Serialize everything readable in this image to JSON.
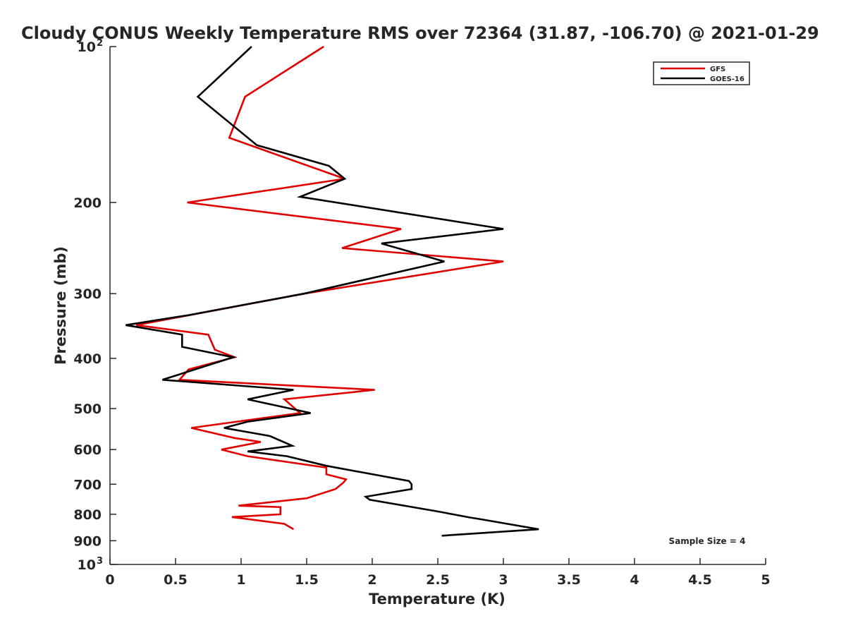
{
  "chart_data": {
    "type": "line",
    "title": "Cloudy CONUS Weekly Temperature RMS over 72364 (31.87, -106.70) @ 2021-01-29",
    "xlabel": "Temperature (K)",
    "ylabel": "Pressure (mb)",
    "xlim": [
      0,
      5
    ],
    "ylim": [
      100,
      1000
    ],
    "y_scale": "log",
    "y_reversed": true,
    "x_ticks": [
      "0",
      "0.5",
      "1",
      "1.5",
      "2",
      "2.5",
      "3",
      "3.5",
      "4",
      "4.5",
      "5"
    ],
    "y_ticks": [
      {
        "value": 100,
        "base": "10",
        "exp": "2"
      },
      {
        "value": 200,
        "base": "200",
        "exp": ""
      },
      {
        "value": 300,
        "base": "300",
        "exp": ""
      },
      {
        "value": 400,
        "base": "400",
        "exp": ""
      },
      {
        "value": 500,
        "base": "500",
        "exp": ""
      },
      {
        "value": 600,
        "base": "600",
        "exp": ""
      },
      {
        "value": 700,
        "base": "700",
        "exp": ""
      },
      {
        "value": 800,
        "base": "800",
        "exp": ""
      },
      {
        "value": 900,
        "base": "900",
        "exp": ""
      },
      {
        "value": 1000,
        "base": "10",
        "exp": "3"
      }
    ],
    "grid": false,
    "legend_position": "top-right",
    "annotation": "Sample Size = 4",
    "series": [
      {
        "name": "GFS",
        "color": "#e00000",
        "points": [
          [
            1.63,
            100
          ],
          [
            1.03,
            125
          ],
          [
            0.91,
            150
          ],
          [
            1.79,
            180
          ],
          [
            0.59,
            200
          ],
          [
            2.22,
            225
          ],
          [
            1.77,
            245
          ],
          [
            3.0,
            260
          ],
          [
            1.48,
            300
          ],
          [
            0.2,
            345
          ],
          [
            0.75,
            360
          ],
          [
            0.8,
            385
          ],
          [
            0.95,
            398
          ],
          [
            0.6,
            420
          ],
          [
            0.53,
            440
          ],
          [
            2.02,
            460
          ],
          [
            1.33,
            480
          ],
          [
            1.45,
            510
          ],
          [
            0.62,
            545
          ],
          [
            0.95,
            570
          ],
          [
            1.15,
            580
          ],
          [
            0.85,
            600
          ],
          [
            1.05,
            618
          ],
          [
            1.65,
            650
          ],
          [
            1.65,
            670
          ],
          [
            1.8,
            685
          ],
          [
            1.78,
            695
          ],
          [
            1.72,
            715
          ],
          [
            1.5,
            745
          ],
          [
            0.98,
            770
          ],
          [
            1.3,
            775
          ],
          [
            1.3,
            800
          ],
          [
            0.93,
            810
          ],
          [
            1.33,
            835
          ],
          [
            1.4,
            855
          ]
        ]
      },
      {
        "name": "GOES-16",
        "color": "#000000",
        "points": [
          [
            1.08,
            100
          ],
          [
            0.67,
            125
          ],
          [
            1.12,
            155
          ],
          [
            1.67,
            170
          ],
          [
            1.79,
            180
          ],
          [
            1.45,
            195
          ],
          [
            3.0,
            225
          ],
          [
            2.07,
            240
          ],
          [
            2.55,
            260
          ],
          [
            1.48,
            300
          ],
          [
            0.6,
            330
          ],
          [
            0.12,
            345
          ],
          [
            0.55,
            360
          ],
          [
            0.55,
            380
          ],
          [
            0.94,
            398
          ],
          [
            0.4,
            440
          ],
          [
            1.4,
            460
          ],
          [
            1.05,
            480
          ],
          [
            1.53,
            510
          ],
          [
            1.05,
            530
          ],
          [
            0.87,
            545
          ],
          [
            1.22,
            565
          ],
          [
            1.39,
            590
          ],
          [
            1.05,
            605
          ],
          [
            1.35,
            618
          ],
          [
            1.65,
            645
          ],
          [
            2.28,
            690
          ],
          [
            2.3,
            700
          ],
          [
            2.3,
            715
          ],
          [
            1.95,
            740
          ],
          [
            1.98,
            750
          ],
          [
            2.5,
            790
          ],
          [
            2.75,
            812
          ],
          [
            2.83,
            818
          ],
          [
            3.27,
            855
          ],
          [
            2.53,
            880
          ]
        ]
      }
    ]
  }
}
